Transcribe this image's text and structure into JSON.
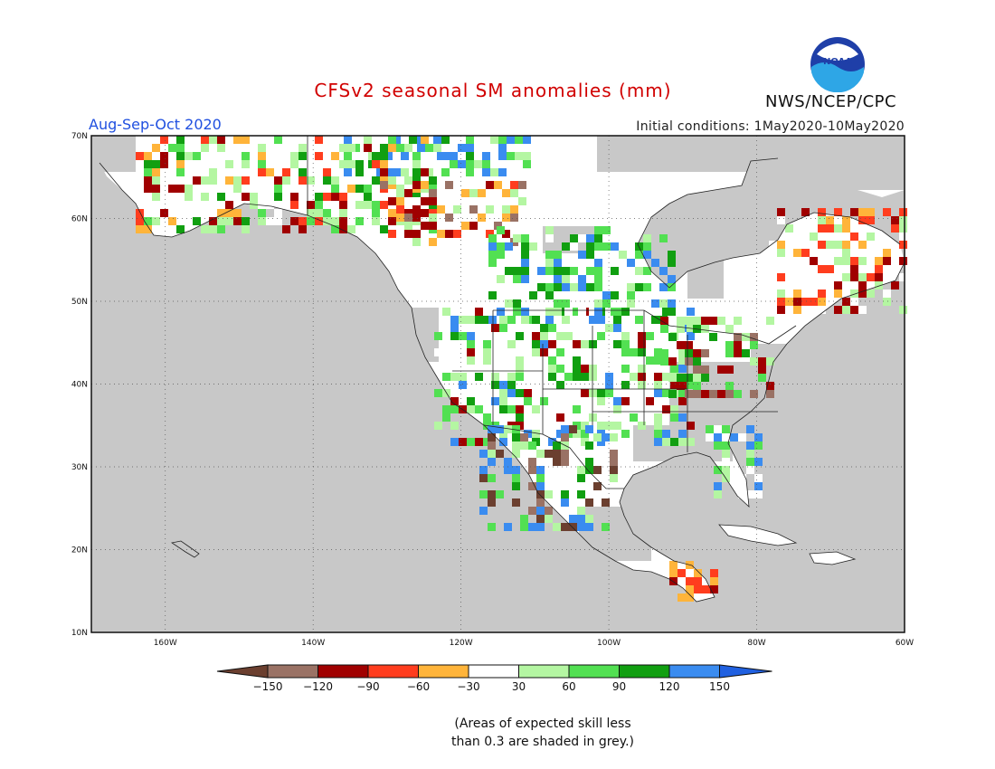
{
  "header": {
    "title": "CFSv2 seasonal SM anomalies (mm)",
    "period": "Aug-Sep-Oct 2020",
    "initial_conditions": "Initial conditions: 1May2020-10May2020",
    "agency": "NWS/NCEP/CPC",
    "logo_text": "NOAA"
  },
  "map": {
    "region": "North America",
    "lat_range": [
      10,
      70
    ],
    "lon_range": [
      -170,
      -60
    ],
    "lat_ticks": [
      "70N",
      "60N",
      "50N",
      "40N",
      "30N",
      "20N",
      "10N"
    ],
    "lon_ticks": [
      "160W",
      "140W",
      "120W",
      "100W",
      "80W",
      "60W"
    ],
    "background_color": "#c8c8c8",
    "gridlines": "dotted"
  },
  "colorbar": {
    "labels": [
      "−150",
      "−120",
      "−90",
      "−60",
      "−30",
      "30",
      "60",
      "90",
      "120",
      "150"
    ],
    "colors": [
      "#6b3f2f",
      "#9a7265",
      "#a00000",
      "#ff3d1e",
      "#ffb43a",
      "#ffffff",
      "#b4f6a2",
      "#52e052",
      "#119f11",
      "#3a8cf0",
      "#2060e0"
    ],
    "units": "mm"
  },
  "notes": {
    "skill_line1": "(Areas of expected skill less",
    "skill_line2": "than 0.3 are shaded in grey.)"
  }
}
